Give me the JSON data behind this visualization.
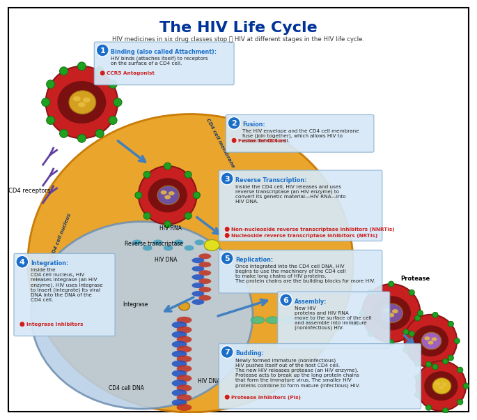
{
  "title": "The HIV Life Cycle",
  "subtitle": "HIV medicines in six drug classes stop ⛔ HIV at different stages in the HIV life cycle.",
  "background_color": "#ffffff",
  "border_color": "#000000",
  "title_color": "#003399",
  "subtitle_color": "#333333",
  "cell_colors": {
    "outer_cell": "#e8a020",
    "inner_nucleus": "#b0c8e8",
    "hiv_virus": "#c82020",
    "hiv_interior": "#8b1a1a"
  },
  "labels": {
    "cd4_receptors": "CD4 receptors",
    "hiv_rna": "HIV RNA",
    "reverse_transcriptase": "Reverse transcriptase",
    "hiv_dna": "HIV DNA",
    "integrase": "Integrase",
    "membrane": "Membrane of CD4 cell nucleus",
    "cd4_cell_dna": "CD4 cell DNA",
    "cd4_cell_membrane": "CD4 cell membrane",
    "protease": "Protease"
  },
  "step_box_bg": "#d6e8f7",
  "step_box_edge": "#8ab0d0",
  "step_num_color": "#1a6dc8",
  "drug_color": "#cc2020",
  "figsize": [
    6.69,
    5.86
  ],
  "dpi": 100
}
